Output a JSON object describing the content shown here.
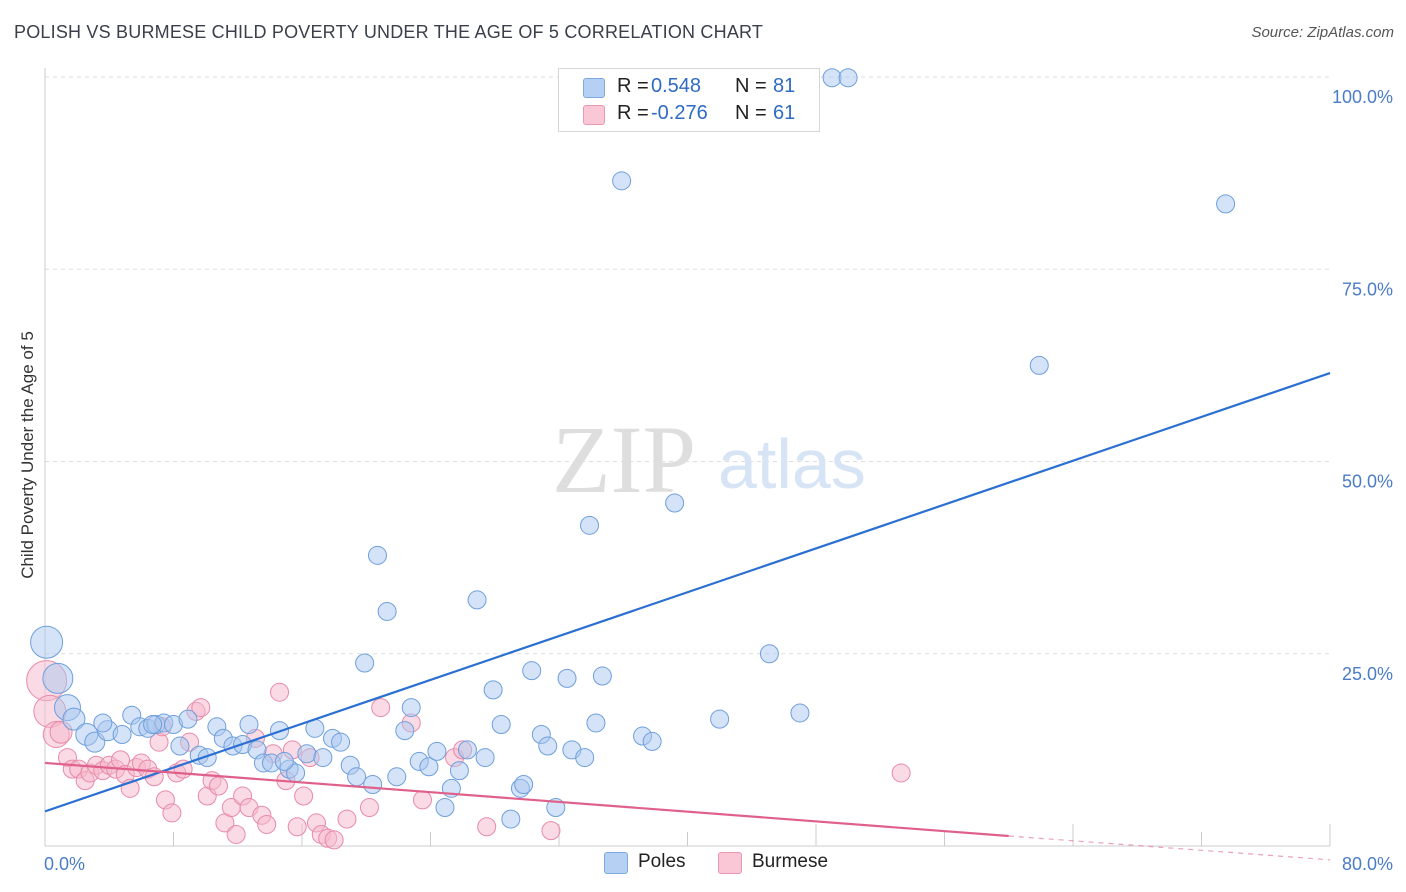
{
  "title": "POLISH VS BURMESE CHILD POVERTY UNDER THE AGE OF 5 CORRELATION CHART",
  "source": "Source: ZipAtlas.com",
  "watermark": {
    "zip": "ZIP",
    "atlas": "atlas"
  },
  "legend": {
    "rows": [
      {
        "r_label": "R =",
        "r_value": "0.548",
        "n_label": "N =",
        "n_value": "81"
      },
      {
        "r_label": "R =",
        "r_value": "-0.276",
        "n_label": "N =",
        "n_value": "61"
      }
    ]
  },
  "bottom_legend": {
    "items": [
      "Poles",
      "Burmese"
    ]
  },
  "colors": {
    "poles_fill": "#a9c7ef",
    "poles_stroke": "#6f9fdc",
    "poles_line": "#2a6fd1",
    "burmese_fill": "#f6b8cc",
    "burmese_stroke": "#e88aa8",
    "burmese_line": "#e0608c",
    "tick_text": "#4a7cc7",
    "grid": "#dddddd"
  },
  "chart_data": {
    "type": "scatter",
    "title": "POLISH VS BURMESE CHILD POVERTY UNDER THE AGE OF 5 CORRELATION CHART",
    "xlabel": "",
    "ylabel": "Child Poverty Under the Age of 5",
    "xlim": [
      0,
      80
    ],
    "ylim": [
      0,
      100
    ],
    "x_tick_labels": [
      "0.0%",
      "80.0%"
    ],
    "y_ticks": [
      25,
      50,
      75,
      100
    ],
    "y_tick_labels": [
      "25.0%",
      "50.0%",
      "75.0%",
      "100.0%"
    ],
    "grid": true,
    "legend_position": "top-center",
    "series": [
      {
        "name": "Poles",
        "r": 0.548,
        "n": 81,
        "trend": {
          "x": [
            0,
            80
          ],
          "y": [
            4.5,
            61.5
          ]
        },
        "points": [
          [
            0.1,
            26.5
          ],
          [
            0.8,
            21.8
          ],
          [
            1.4,
            18.0
          ],
          [
            1.8,
            16.5
          ],
          [
            2.6,
            14.5
          ],
          [
            3.1,
            13.5
          ],
          [
            3.9,
            15.0
          ],
          [
            4.8,
            14.5
          ],
          [
            5.4,
            17.0
          ],
          [
            5.9,
            15.5
          ],
          [
            6.4,
            15.3
          ],
          [
            6.9,
            15.8
          ],
          [
            7.4,
            16.0
          ],
          [
            8.0,
            15.8
          ],
          [
            8.4,
            13.0
          ],
          [
            8.9,
            16.5
          ],
          [
            9.6,
            11.8
          ],
          [
            10.1,
            11.5
          ],
          [
            10.7,
            15.5
          ],
          [
            11.1,
            14.0
          ],
          [
            11.7,
            13.0
          ],
          [
            12.3,
            13.2
          ],
          [
            12.7,
            15.8
          ],
          [
            13.2,
            12.5
          ],
          [
            13.6,
            10.8
          ],
          [
            14.1,
            10.8
          ],
          [
            14.6,
            15.0
          ],
          [
            15.2,
            10.0
          ],
          [
            15.6,
            9.5
          ],
          [
            16.3,
            12.0
          ],
          [
            16.8,
            15.3
          ],
          [
            17.3,
            11.5
          ],
          [
            17.9,
            14.0
          ],
          [
            18.4,
            13.5
          ],
          [
            19.0,
            10.5
          ],
          [
            19.4,
            9.0
          ],
          [
            19.9,
            23.8
          ],
          [
            20.4,
            8.0
          ],
          [
            20.7,
            37.8
          ],
          [
            21.3,
            30.5
          ],
          [
            21.9,
            9.0
          ],
          [
            22.4,
            15.0
          ],
          [
            22.8,
            18.0
          ],
          [
            23.3,
            11.0
          ],
          [
            23.9,
            10.3
          ],
          [
            24.4,
            12.3
          ],
          [
            24.9,
            5.0
          ],
          [
            25.3,
            7.5
          ],
          [
            25.8,
            9.8
          ],
          [
            26.3,
            12.5
          ],
          [
            26.9,
            32.0
          ],
          [
            27.4,
            11.5
          ],
          [
            27.9,
            20.3
          ],
          [
            28.4,
            15.8
          ],
          [
            29.0,
            3.5
          ],
          [
            29.6,
            7.5
          ],
          [
            29.8,
            8.0
          ],
          [
            30.3,
            22.8
          ],
          [
            30.9,
            14.5
          ],
          [
            31.3,
            13.0
          ],
          [
            31.8,
            5.0
          ],
          [
            32.5,
            21.8
          ],
          [
            32.8,
            12.5
          ],
          [
            33.6,
            11.5
          ],
          [
            33.9,
            41.7
          ],
          [
            34.3,
            16.0
          ],
          [
            34.7,
            22.1
          ],
          [
            35.9,
            86.5
          ],
          [
            37.2,
            14.3
          ],
          [
            37.8,
            13.6
          ],
          [
            39.2,
            44.6
          ],
          [
            42.0,
            16.5
          ],
          [
            45.1,
            25.0
          ],
          [
            47.0,
            17.3
          ],
          [
            61.9,
            62.5
          ],
          [
            73.5,
            83.5
          ],
          [
            49.0,
            99.9
          ],
          [
            50.0,
            99.9
          ],
          [
            3.6,
            16.0
          ],
          [
            6.7,
            15.8
          ],
          [
            14.9,
            11.0
          ]
        ],
        "point_sizes": [
          16,
          15,
          13,
          11,
          11,
          10,
          10,
          9,
          9,
          9,
          9,
          9,
          9,
          9,
          9,
          9,
          9,
          9,
          9,
          9,
          9,
          9,
          9,
          9,
          9,
          9,
          9,
          9,
          9,
          9,
          9,
          9,
          9,
          9,
          9,
          9,
          9,
          9,
          9,
          9,
          9,
          9,
          9,
          9,
          9,
          9,
          9,
          9,
          9,
          9,
          9,
          9,
          9,
          9,
          9,
          9,
          9,
          9,
          9,
          9,
          9,
          9,
          9,
          9,
          9,
          9,
          9,
          9,
          9,
          9,
          9,
          9,
          9,
          9,
          9,
          9,
          9,
          9,
          9,
          9,
          9
        ]
      },
      {
        "name": "Burmese",
        "r": -0.276,
        "n": 61,
        "trend": {
          "x": [
            0,
            60
          ],
          "y": [
            10.8,
            1.3
          ]
        },
        "trend_dashed": {
          "x": [
            60,
            80
          ],
          "y": [
            1.3,
            -1.8
          ]
        },
        "points": [
          [
            0.1,
            21.5
          ],
          [
            0.3,
            17.5
          ],
          [
            0.7,
            14.5
          ],
          [
            1.0,
            14.8
          ],
          [
            1.4,
            11.5
          ],
          [
            1.7,
            10.0
          ],
          [
            2.1,
            10.0
          ],
          [
            2.5,
            8.5
          ],
          [
            2.8,
            9.5
          ],
          [
            3.2,
            10.5
          ],
          [
            3.6,
            9.8
          ],
          [
            4.0,
            10.5
          ],
          [
            4.4,
            10.0
          ],
          [
            4.7,
            11.2
          ],
          [
            5.0,
            9.3
          ],
          [
            5.3,
            7.5
          ],
          [
            5.7,
            10.2
          ],
          [
            6.0,
            10.8
          ],
          [
            6.4,
            10.0
          ],
          [
            6.8,
            9.0
          ],
          [
            7.1,
            13.5
          ],
          [
            7.5,
            6.0
          ],
          [
            7.9,
            4.3
          ],
          [
            8.2,
            9.5
          ],
          [
            8.6,
            10.0
          ],
          [
            9.0,
            13.5
          ],
          [
            9.4,
            17.5
          ],
          [
            9.7,
            18.0
          ],
          [
            10.1,
            6.5
          ],
          [
            10.4,
            8.5
          ],
          [
            10.8,
            7.8
          ],
          [
            11.2,
            3.0
          ],
          [
            11.6,
            5.0
          ],
          [
            11.9,
            1.5
          ],
          [
            12.3,
            6.5
          ],
          [
            12.7,
            5.0
          ],
          [
            13.1,
            14.0
          ],
          [
            13.5,
            4.0
          ],
          [
            13.8,
            2.8
          ],
          [
            14.2,
            12.0
          ],
          [
            14.6,
            20.0
          ],
          [
            15.0,
            8.5
          ],
          [
            15.4,
            12.5
          ],
          [
            15.7,
            2.5
          ],
          [
            16.1,
            6.5
          ],
          [
            16.5,
            11.5
          ],
          [
            16.9,
            3.0
          ],
          [
            17.2,
            1.5
          ],
          [
            17.6,
            1.0
          ],
          [
            18.0,
            0.8
          ],
          [
            18.8,
            3.5
          ],
          [
            20.2,
            5.0
          ],
          [
            20.9,
            18.0
          ],
          [
            22.8,
            16.0
          ],
          [
            23.5,
            6.0
          ],
          [
            25.5,
            11.5
          ],
          [
            26.0,
            12.5
          ],
          [
            27.5,
            2.5
          ],
          [
            31.5,
            2.0
          ],
          [
            7.3,
            15.5
          ],
          [
            53.3,
            9.5
          ]
        ],
        "point_sizes": [
          20,
          16,
          13,
          11,
          9,
          9,
          9,
          9,
          9,
          9,
          9,
          9,
          9,
          9,
          9,
          9,
          9,
          9,
          9,
          9,
          9,
          9,
          9,
          9,
          9,
          9,
          9,
          9,
          9,
          9,
          9,
          9,
          9,
          9,
          9,
          9,
          9,
          9,
          9,
          9,
          9,
          9,
          9,
          9,
          9,
          9,
          9,
          9,
          9,
          9,
          9,
          9,
          9,
          9,
          9,
          9,
          9,
          9,
          9,
          9,
          9
        ]
      }
    ]
  }
}
